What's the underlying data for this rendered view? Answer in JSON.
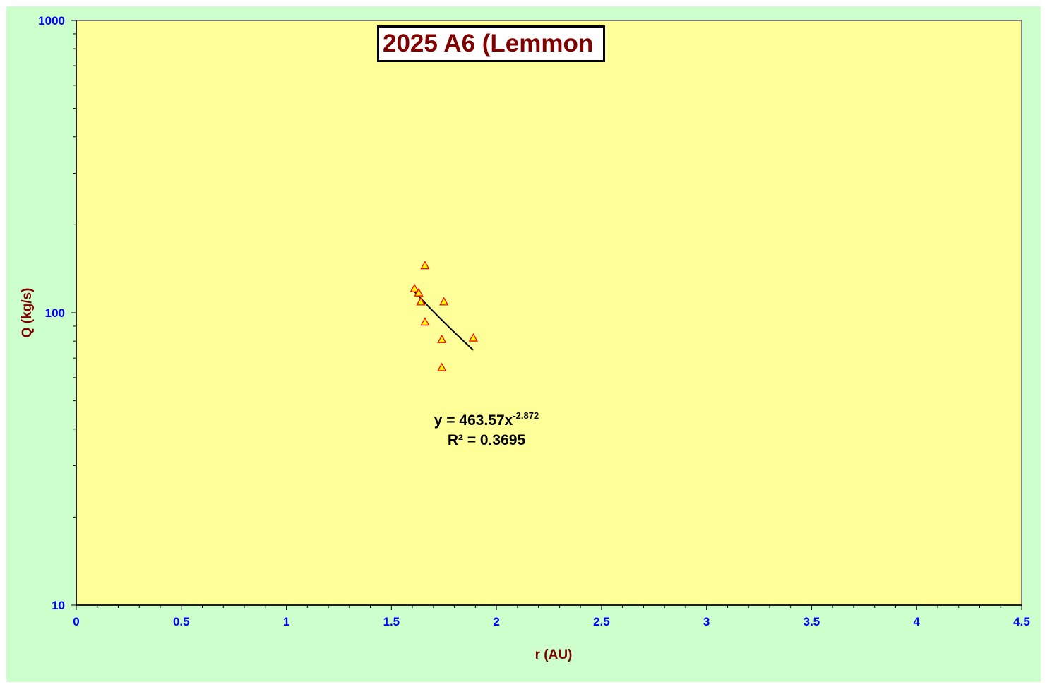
{
  "chart_data": {
    "type": "scatter",
    "title": "2025 A6 (Lemmon",
    "xlabel": "r (AU)",
    "ylabel": "Q (kg/s)",
    "xlim": [
      0,
      4.5
    ],
    "ylim": [
      10,
      1000
    ],
    "yscale": "log",
    "x_tick_labels": [
      "0",
      "0.5",
      "1",
      "1.5",
      "2",
      "2.5",
      "3",
      "3.5",
      "4",
      "4.5"
    ],
    "y_tick_labels": [
      "10",
      "100",
      "1000"
    ],
    "grid": false,
    "series": [
      {
        "marker": "triangle",
        "points": [
          {
            "x": 1.61,
            "y": 121
          },
          {
            "x": 1.63,
            "y": 117
          },
          {
            "x": 1.64,
            "y": 109
          },
          {
            "x": 1.66,
            "y": 145
          },
          {
            "x": 1.66,
            "y": 93
          },
          {
            "x": 1.74,
            "y": 81
          },
          {
            "x": 1.74,
            "y": 65
          },
          {
            "x": 1.75,
            "y": 109
          },
          {
            "x": 1.89,
            "y": 82
          }
        ]
      }
    ],
    "trendline": {
      "type": "power",
      "a": 463.57,
      "b": -2.872,
      "x_range": [
        1.61,
        1.89
      ],
      "equation_prefix": "y = 463.57x",
      "equation_exponent": "-2.872",
      "r_squared_label": "R² = 0.3695"
    },
    "colors": {
      "outer_background": "#ccffcc",
      "plot_background": "#ffff99",
      "plot_border": "#808080",
      "tick_label": "#0000ff",
      "axis_title": "#800000",
      "title_text": "#800000",
      "marker_fill": "#ffff00",
      "marker_edge": "#ff0000",
      "trendline": "#000000"
    }
  }
}
